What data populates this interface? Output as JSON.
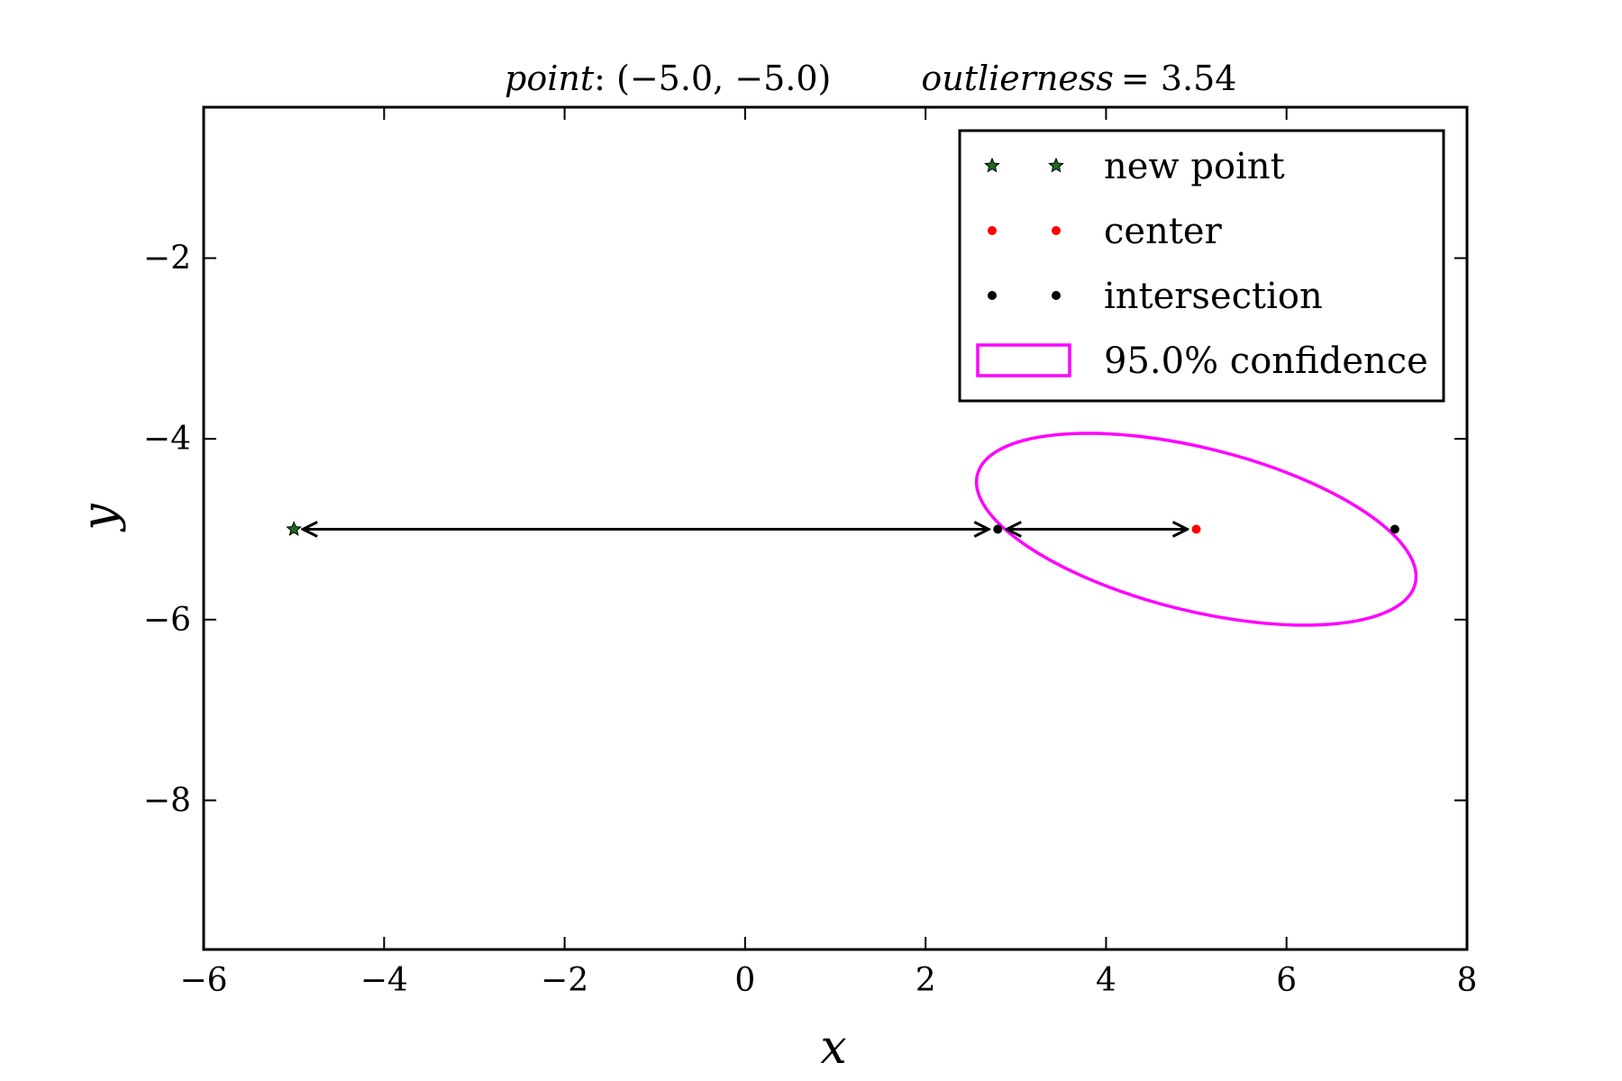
{
  "chart_data": {
    "type": "scatter",
    "title": {
      "point_label": "point",
      "point_value": ": (−5.0, −5.0)",
      "outlierness_label": "outlierness",
      "outlierness_value": "= 3.54"
    },
    "xlabel": "x",
    "ylabel": "y",
    "xlim": [
      -6,
      8
    ],
    "ylim": [
      -9.65,
      -0.33
    ],
    "xticks": [
      -6,
      -4,
      -2,
      0,
      2,
      4,
      6,
      8
    ],
    "xtick_labels": [
      "−6",
      "−4",
      "−2",
      "0",
      "2",
      "4",
      "6",
      "8"
    ],
    "yticks": [
      -2,
      -4,
      -6,
      -8
    ],
    "ytick_labels": [
      "−2",
      "−4",
      "−6",
      "−8"
    ],
    "grid": false,
    "legend_placement": "top-right",
    "legend": [
      {
        "label": "new point",
        "marker": "star",
        "color": "#1f6b1f"
      },
      {
        "label": "center",
        "marker": "dot",
        "color": "#ff0000"
      },
      {
        "label": "intersection",
        "marker": "dot",
        "color": "#000000"
      },
      {
        "label": "95.0% confidence",
        "marker": "rect-outline",
        "color": "#ff00ff"
      }
    ],
    "new_point": {
      "x": -5.0,
      "y": -5.0
    },
    "center": {
      "x": 5.0,
      "y": -5.0
    },
    "intersections": [
      {
        "x": 2.8,
        "y": -5.0
      },
      {
        "x": 7.2,
        "y": -5.0
      }
    ],
    "ellipse": {
      "cx": 5.0,
      "cy": -5.0,
      "width": 5.0,
      "height": 1.8,
      "angle_deg": -14,
      "color": "#ff00ff"
    },
    "arrows": [
      {
        "from": {
          "x": -5.0,
          "y": -5.0
        },
        "to": {
          "x": 2.8,
          "y": -5.0
        }
      },
      {
        "from": {
          "x": 2.8,
          "y": -5.0
        },
        "to": {
          "x": 5.0,
          "y": -5.0
        }
      }
    ]
  }
}
